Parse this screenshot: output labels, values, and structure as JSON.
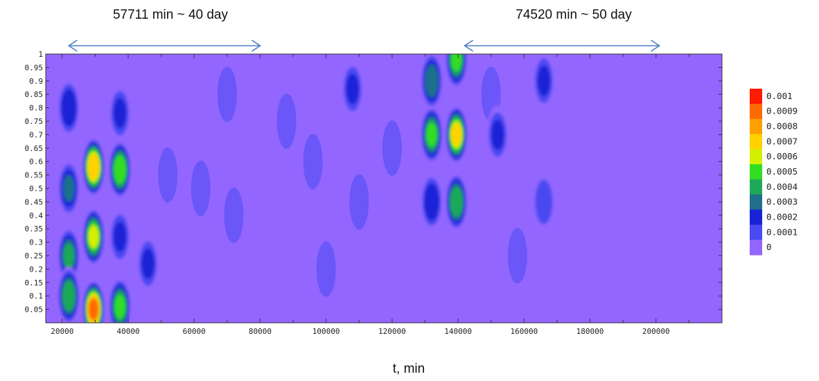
{
  "chart_data": {
    "type": "heatmap",
    "title": "",
    "xlabel": "t, min",
    "ylabel": "",
    "xlim": [
      15000,
      220000
    ],
    "ylim": [
      0,
      1
    ],
    "x_ticks": [
      "20000",
      "40000",
      "60000",
      "80000",
      "100000",
      "120000",
      "140000",
      "160000",
      "180000",
      "200000"
    ],
    "y_ticks": [
      "0.05",
      "0.1",
      "0.15",
      "0.2",
      "0.25",
      "0.3",
      "0.35",
      "0.4",
      "0.45",
      "0.5",
      "0.55",
      "0.6",
      "0.65",
      "0.7",
      "0.75",
      "0.8",
      "0.85",
      "0.9",
      "0.95",
      "1"
    ],
    "colorbar": {
      "labels": [
        "0.001",
        "0.0009",
        "0.0008",
        "0.0007",
        "0.0006",
        "0.0005",
        "0.0004",
        "0.0003",
        "0.0002",
        "0.0001",
        "0"
      ],
      "colors": [
        "#ff1a00",
        "#ff6a00",
        "#ff9f00",
        "#ffd200",
        "#d4f000",
        "#33dd22",
        "#1fa85a",
        "#1f6f8c",
        "#1a22d6",
        "#4a4af2",
        "#9366ff"
      ],
      "background": "#9366ff"
    },
    "annotations": [
      {
        "text": "57711 min ~ 40 day",
        "x_start": 22000,
        "x_end": 80000
      },
      {
        "text": "74520 min ~ 50 day",
        "x_start": 142000,
        "x_end": 201000
      }
    ],
    "arrow_color": "#4a7fc0",
    "blobs": [
      {
        "x": 22000,
        "y": 0.5,
        "intensity": 0.0003
      },
      {
        "x": 22000,
        "y": 0.25,
        "intensity": 0.0004
      },
      {
        "x": 22000,
        "y": 0.1,
        "intensity": 0.00045
      },
      {
        "x": 22000,
        "y": 0.8,
        "intensity": 0.00025
      },
      {
        "x": 29500,
        "y": 0.58,
        "intensity": 0.00075
      },
      {
        "x": 29500,
        "y": 0.32,
        "intensity": 0.0006
      },
      {
        "x": 29500,
        "y": 0.05,
        "intensity": 0.0009
      },
      {
        "x": 37500,
        "y": 0.57,
        "intensity": 0.00055
      },
      {
        "x": 37500,
        "y": 0.06,
        "intensity": 0.0005
      },
      {
        "x": 37500,
        "y": 0.78,
        "intensity": 0.00022
      },
      {
        "x": 37500,
        "y": 0.32,
        "intensity": 0.0002
      },
      {
        "x": 46000,
        "y": 0.22,
        "intensity": 0.00018
      },
      {
        "x": 108000,
        "y": 0.87,
        "intensity": 0.00022
      },
      {
        "x": 132000,
        "y": 0.7,
        "intensity": 0.0005
      },
      {
        "x": 132000,
        "y": 0.9,
        "intensity": 0.00035
      },
      {
        "x": 132000,
        "y": 0.45,
        "intensity": 0.00025
      },
      {
        "x": 139500,
        "y": 0.7,
        "intensity": 0.00068
      },
      {
        "x": 139500,
        "y": 0.98,
        "intensity": 0.0005
      },
      {
        "x": 139500,
        "y": 0.45,
        "intensity": 0.00045
      },
      {
        "x": 152000,
        "y": 0.7,
        "intensity": 0.00018
      },
      {
        "x": 166000,
        "y": 0.9,
        "intensity": 0.00018
      },
      {
        "x": 166000,
        "y": 0.45,
        "intensity": 0.00015
      }
    ]
  }
}
